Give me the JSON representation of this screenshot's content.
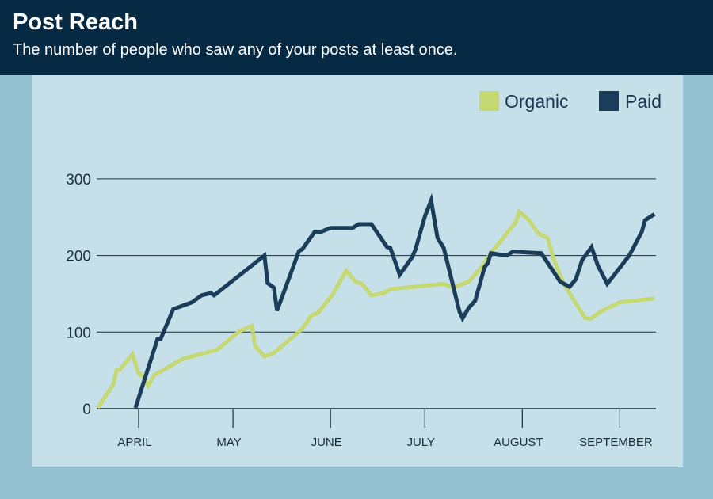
{
  "header": {
    "title": "Post Reach",
    "subtitle": "The number of people who saw any of your posts at least once."
  },
  "chart_data": {
    "type": "line",
    "title": "Post Reach",
    "subtitle": "The number of people who saw any of your posts at least once.",
    "xlabel": "",
    "ylabel": "",
    "x_unit": "days since April 1",
    "xlim": [
      -13,
      164
    ],
    "ylim": [
      0,
      300
    ],
    "yticks": [
      0,
      100,
      200,
      300
    ],
    "ytick_labels": [
      "0",
      "100",
      "200",
      "300"
    ],
    "xticks": [
      0,
      30,
      61,
      91,
      122,
      153
    ],
    "xtick_labels": [
      "APRIL",
      "MAY",
      "JUNE",
      "JULY",
      "AUGUST",
      "SEPTEMBER"
    ],
    "grid": true,
    "legend": "top-right",
    "series": [
      {
        "name": "Organic",
        "color": "#c6d872",
        "points": [
          [
            -13,
            1
          ],
          [
            -8,
            32
          ],
          [
            -7,
            51
          ],
          [
            -6,
            51
          ],
          [
            -2,
            71
          ],
          [
            0,
            46
          ],
          [
            1,
            44
          ],
          [
            3,
            30
          ],
          [
            5,
            44
          ],
          [
            14,
            65
          ],
          [
            25,
            77
          ],
          [
            32,
            101
          ],
          [
            36,
            108
          ],
          [
            37,
            82
          ],
          [
            40,
            68
          ],
          [
            43,
            73
          ],
          [
            52,
            104
          ],
          [
            55,
            122
          ],
          [
            57,
            125
          ],
          [
            62,
            151
          ],
          [
            64,
            166
          ],
          [
            66,
            180
          ],
          [
            69,
            166
          ],
          [
            71,
            163
          ],
          [
            74,
            148
          ],
          [
            78,
            151
          ],
          [
            80,
            156
          ],
          [
            97,
            163
          ],
          [
            100,
            158
          ],
          [
            105,
            166
          ],
          [
            109,
            185
          ],
          [
            112,
            203
          ],
          [
            120,
            244
          ],
          [
            121,
            257
          ],
          [
            124,
            247
          ],
          [
            127,
            229
          ],
          [
            130,
            223
          ],
          [
            132,
            195
          ],
          [
            135,
            164
          ],
          [
            142,
            118
          ],
          [
            144,
            118
          ],
          [
            147,
            127
          ],
          [
            153,
            139
          ],
          [
            164,
            144
          ]
        ]
      },
      {
        "name": "Paid",
        "color": "#1b3d5a",
        "points": [
          [
            -1,
            1
          ],
          [
            6,
            91
          ],
          [
            7,
            91
          ],
          [
            11,
            130
          ],
          [
            17,
            139
          ],
          [
            20,
            148
          ],
          [
            23,
            151
          ],
          [
            24,
            148
          ],
          [
            40,
            200
          ],
          [
            41,
            164
          ],
          [
            43,
            158
          ],
          [
            44,
            128
          ],
          [
            51,
            206
          ],
          [
            52,
            208
          ],
          [
            56,
            231
          ],
          [
            58,
            231
          ],
          [
            61,
            236
          ],
          [
            68,
            236
          ],
          [
            70,
            241
          ],
          [
            74,
            241
          ],
          [
            79,
            211
          ],
          [
            80,
            210
          ],
          [
            83,
            175
          ],
          [
            87,
            198
          ],
          [
            88,
            208
          ],
          [
            91,
            251
          ],
          [
            93,
            272
          ],
          [
            95,
            223
          ],
          [
            97,
            210
          ],
          [
            102,
            127
          ],
          [
            103,
            118
          ],
          [
            105,
            132
          ],
          [
            107,
            141
          ],
          [
            110,
            185
          ],
          [
            111,
            190
          ],
          [
            112,
            203
          ],
          [
            117,
            200
          ],
          [
            119,
            205
          ],
          [
            128,
            203
          ],
          [
            134,
            166
          ],
          [
            137,
            159
          ],
          [
            139,
            169
          ],
          [
            141,
            194
          ],
          [
            144,
            211
          ],
          [
            146,
            187
          ],
          [
            149,
            163
          ],
          [
            156,
            200
          ],
          [
            160,
            231
          ],
          [
            161,
            246
          ],
          [
            164,
            254
          ]
        ]
      }
    ]
  }
}
